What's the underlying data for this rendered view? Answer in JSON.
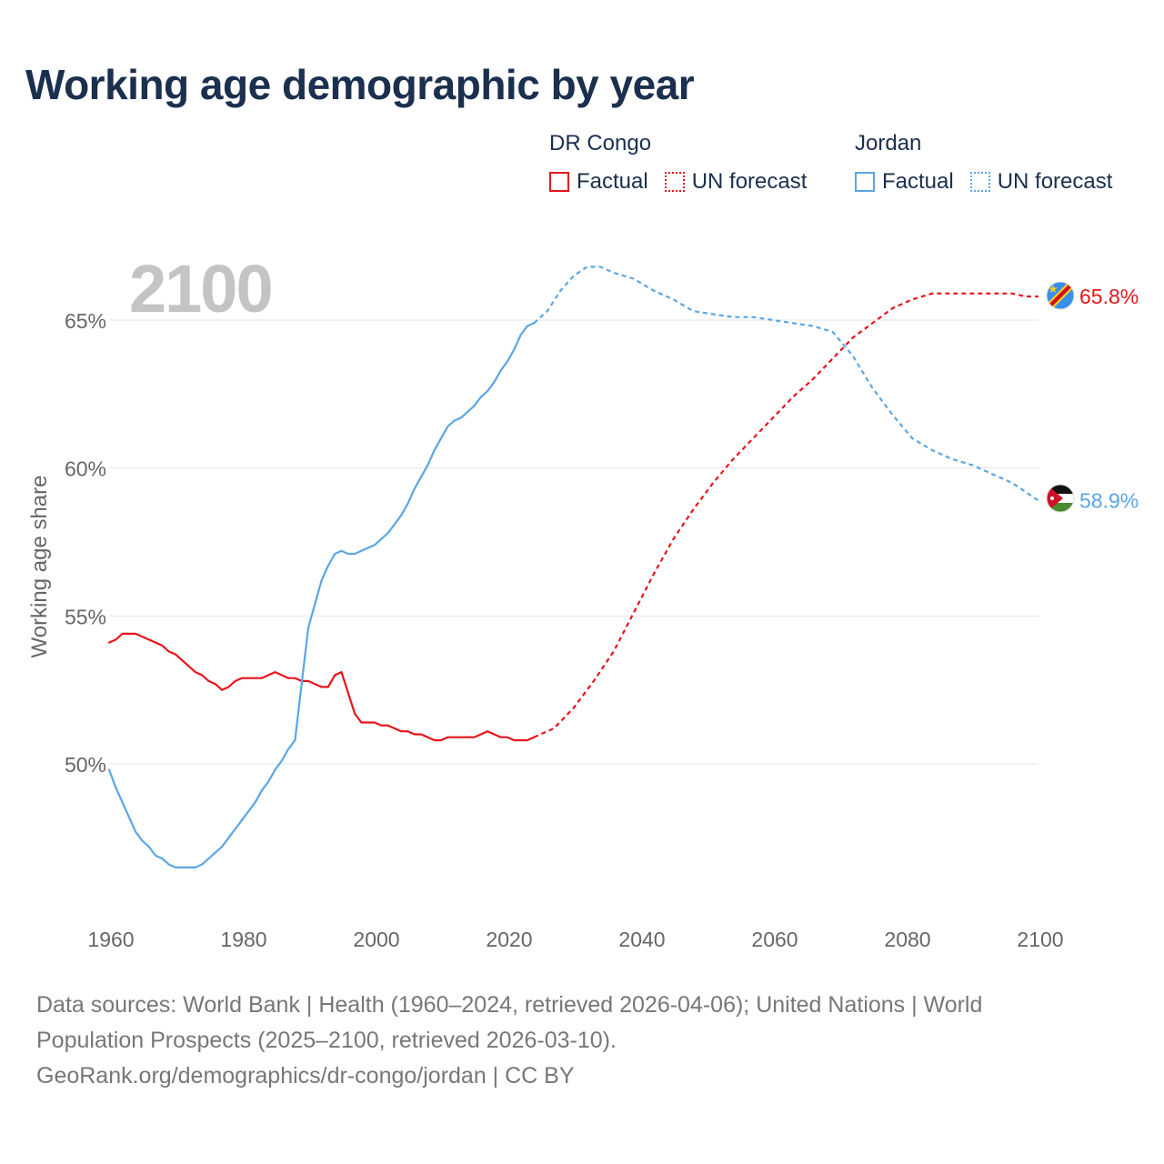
{
  "title": "Working age demographic by year",
  "legend": {
    "groups": [
      {
        "country": "DR Congo",
        "color": "#e8141b",
        "factual_label": "Factual",
        "forecast_label": "UN forecast"
      },
      {
        "country": "Jordan",
        "color": "#5aa6e6",
        "factual_label": "Factual",
        "forecast_label": "UN forecast"
      }
    ]
  },
  "year_watermark": "2100",
  "footer": {
    "line1": "Data sources: World Bank | Health (1960–2024, retrieved 2026-04-06); United Nations | World",
    "line2": "Population Prospects (2025–2100, retrieved 2026-03-10).",
    "line3": "GeoRank.org/demographics/dr-congo/jordan | CC BY"
  },
  "chart_data": {
    "type": "line",
    "title": "Working age demographic by year",
    "xlabel": "",
    "ylabel": "Working age share",
    "xlim": [
      1960,
      2100
    ],
    "ylim": [
      45.5,
      68
    ],
    "x_ticks": [
      1960,
      1980,
      2000,
      2020,
      2040,
      2060,
      2080,
      2100
    ],
    "x_tick_labels": [
      "1960",
      "1980",
      "2000",
      "2020",
      "2040",
      "2060",
      "2080",
      "2100"
    ],
    "y_ticks": [
      50,
      55,
      60,
      65
    ],
    "y_tick_labels": [
      "50%",
      "55%",
      "60%",
      "65%"
    ],
    "grid": true,
    "legend_position": "top-right",
    "series": [
      {
        "name": "DR Congo",
        "color": "#e8141b",
        "end_label": "65.8%",
        "factual": {
          "x": [
            1960,
            1961,
            1962,
            1963,
            1964,
            1965,
            1966,
            1967,
            1968,
            1969,
            1970,
            1971,
            1972,
            1973,
            1974,
            1975,
            1976,
            1977,
            1978,
            1979,
            1980,
            1981,
            1982,
            1983,
            1984,
            1985,
            1986,
            1987,
            1988,
            1989,
            1990,
            1991,
            1992,
            1993,
            1994,
            1995,
            1996,
            1997,
            1998,
            1999,
            2000,
            2001,
            2002,
            2003,
            2004,
            2005,
            2006,
            2007,
            2008,
            2009,
            2010,
            2011,
            2012,
            2013,
            2014,
            2015,
            2016,
            2017,
            2018,
            2019,
            2020,
            2021,
            2022,
            2023,
            2024
          ],
          "y": [
            54.1,
            54.2,
            54.4,
            54.4,
            54.4,
            54.3,
            54.2,
            54.1,
            54.0,
            53.8,
            53.7,
            53.5,
            53.3,
            53.1,
            53.0,
            52.8,
            52.7,
            52.5,
            52.6,
            52.8,
            52.9,
            52.9,
            52.9,
            52.9,
            53.0,
            53.1,
            53.0,
            52.9,
            52.9,
            52.8,
            52.8,
            52.7,
            52.6,
            52.6,
            53.0,
            53.1,
            52.4,
            51.7,
            51.4,
            51.4,
            51.4,
            51.3,
            51.3,
            51.2,
            51.1,
            51.1,
            51.0,
            51.0,
            50.9,
            50.8,
            50.8,
            50.9,
            50.9,
            50.9,
            50.9,
            50.9,
            51.0,
            51.1,
            51.0,
            50.9,
            50.9,
            50.8,
            50.8,
            50.8,
            50.9
          ]
        },
        "forecast": {
          "x": [
            2024,
            2027,
            2030,
            2033,
            2036,
            2039,
            2042,
            2045,
            2048,
            2051,
            2054,
            2057,
            2060,
            2063,
            2066,
            2069,
            2072,
            2075,
            2078,
            2081,
            2084,
            2087,
            2090,
            2093,
            2096,
            2098,
            2100
          ],
          "y": [
            50.9,
            51.2,
            51.9,
            52.8,
            53.8,
            55.1,
            56.4,
            57.6,
            58.6,
            59.5,
            60.3,
            61.0,
            61.7,
            62.4,
            63.0,
            63.7,
            64.4,
            64.9,
            65.4,
            65.7,
            65.9,
            65.9,
            65.9,
            65.9,
            65.9,
            65.8,
            65.8
          ]
        }
      },
      {
        "name": "Jordan",
        "color": "#5aa6e6",
        "end_label": "58.9%",
        "factual": {
          "x": [
            1960,
            1961,
            1962,
            1963,
            1964,
            1965,
            1966,
            1967,
            1968,
            1969,
            1970,
            1971,
            1972,
            1973,
            1974,
            1975,
            1976,
            1977,
            1978,
            1979,
            1980,
            1981,
            1982,
            1983,
            1984,
            1985,
            1986,
            1987,
            1988,
            1989,
            1990,
            1991,
            1992,
            1993,
            1994,
            1995,
            1996,
            1997,
            1998,
            1999,
            2000,
            2001,
            2002,
            2003,
            2004,
            2005,
            2006,
            2007,
            2008,
            2009,
            2010,
            2011,
            2012,
            2013,
            2014,
            2015,
            2016,
            2017,
            2018,
            2019,
            2020,
            2021,
            2022,
            2023,
            2024
          ],
          "y": [
            49.8,
            49.2,
            48.7,
            48.2,
            47.7,
            47.4,
            47.2,
            46.9,
            46.8,
            46.6,
            46.5,
            46.5,
            46.5,
            46.5,
            46.6,
            46.8,
            47.0,
            47.2,
            47.5,
            47.8,
            48.1,
            48.4,
            48.7,
            49.1,
            49.4,
            49.8,
            50.1,
            50.5,
            50.8,
            52.7,
            54.6,
            55.4,
            56.2,
            56.7,
            57.1,
            57.2,
            57.1,
            57.1,
            57.2,
            57.3,
            57.4,
            57.6,
            57.8,
            58.1,
            58.4,
            58.8,
            59.3,
            59.7,
            60.1,
            60.6,
            61.0,
            61.4,
            61.6,
            61.7,
            61.9,
            62.1,
            62.4,
            62.6,
            62.9,
            63.3,
            63.6,
            64.0,
            64.5,
            64.8,
            64.9
          ]
        },
        "forecast": {
          "x": [
            2024,
            2026,
            2028,
            2030,
            2032,
            2034,
            2036,
            2039,
            2042,
            2045,
            2048,
            2051,
            2054,
            2057,
            2060,
            2063,
            2066,
            2069,
            2072,
            2075,
            2078,
            2081,
            2084,
            2087,
            2090,
            2093,
            2096,
            2098,
            2100
          ],
          "y": [
            64.9,
            65.3,
            66.0,
            66.5,
            66.8,
            66.8,
            66.6,
            66.4,
            66.0,
            65.7,
            65.3,
            65.2,
            65.1,
            65.1,
            65.0,
            64.9,
            64.8,
            64.6,
            63.8,
            62.7,
            61.8,
            61.0,
            60.6,
            60.3,
            60.1,
            59.8,
            59.5,
            59.2,
            58.9
          ]
        }
      }
    ]
  }
}
